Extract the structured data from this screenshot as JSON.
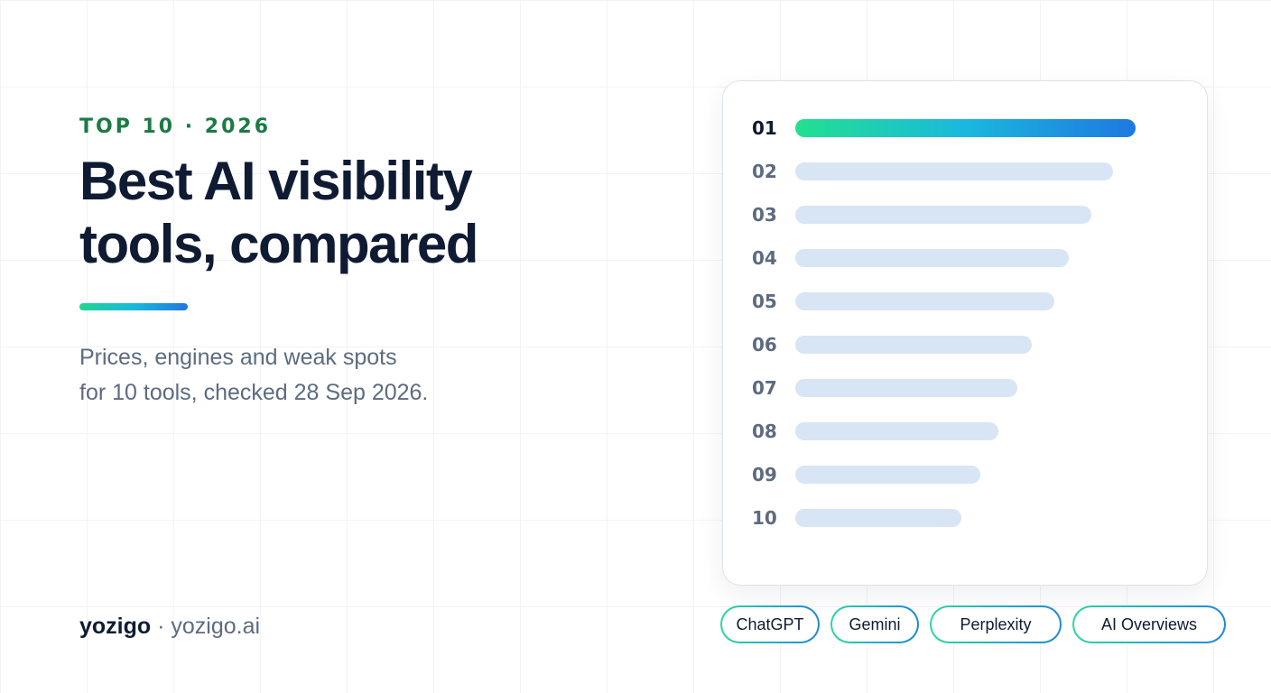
{
  "header": {
    "eyebrow": "TOP 10 · 2026",
    "title_lines": [
      "Best AI visibility",
      "tools, compared"
    ],
    "subtitle_lines": [
      "Prices, engines and weak spots",
      "for 10 tools, checked 28 Sep 2026."
    ]
  },
  "footer": {
    "brand_name": "yozigo",
    "separator": " · ",
    "domain": "yozigo.ai"
  },
  "ranking": {
    "items": [
      {
        "rank": "01",
        "level": 1.0
      },
      {
        "rank": "02",
        "level": 0.935
      },
      {
        "rank": "03",
        "level": 0.87
      },
      {
        "rank": "04",
        "level": 0.805
      },
      {
        "rank": "05",
        "level": 0.762
      },
      {
        "rank": "06",
        "level": 0.695
      },
      {
        "rank": "07",
        "level": 0.652
      },
      {
        "rank": "08",
        "level": 0.597
      },
      {
        "rank": "09",
        "level": 0.544
      },
      {
        "rank": "10",
        "level": 0.488
      }
    ]
  },
  "engines": [
    "ChatGPT",
    "Gemini",
    "Perplexity",
    "AI Overviews"
  ],
  "colors": {
    "eyebrow": "#1b7a45",
    "title": "#0f1b33",
    "muted_text": "#5d6b80",
    "bar_track": "#d8e5f4",
    "gradient_start": "#22e08f",
    "gradient_end": "#1f78e0"
  }
}
